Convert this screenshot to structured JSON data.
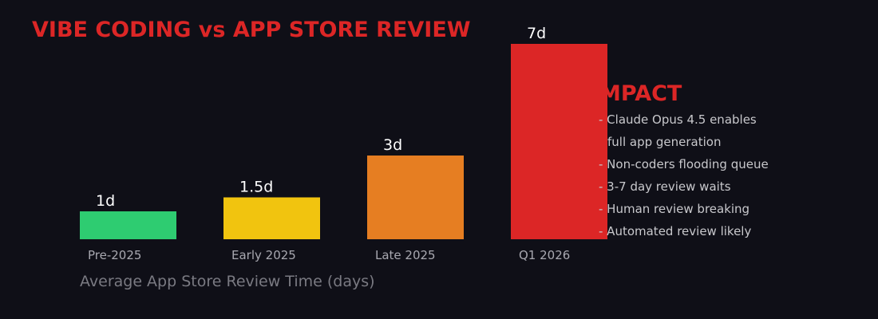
{
  "chart_data": {
    "type": "bar",
    "title": "VIBE CODING vs APP STORE REVIEW",
    "xlabel": "Average App Store Review Time (days)",
    "ylabel": "",
    "categories": [
      "Pre-2025",
      "Early 2025",
      "Late 2025",
      "Q1 2026"
    ],
    "values": [
      1,
      1.5,
      3,
      7
    ],
    "value_labels": [
      "1d",
      "1.5d",
      "3d",
      "7d"
    ],
    "bar_colors": [
      "#2ecc71",
      "#f1c40f",
      "#e67e22",
      "#dc2626"
    ],
    "ylim": [
      0,
      7
    ],
    "grid": false
  },
  "impact": {
    "heading": "IMPACT",
    "items": [
      "- Claude Opus 4.5 enables",
      "full app generation",
      "- Non-coders flooding queue",
      "- 3-7 day review waits",
      "- Human review breaking",
      "- Automated review likely"
    ]
  },
  "colors": {
    "background": "#0f0f17",
    "accent": "#dc2626",
    "category_text": "#a8a8b0",
    "caption_text": "#7a7a82",
    "impact_text": "#c8c8cc"
  }
}
